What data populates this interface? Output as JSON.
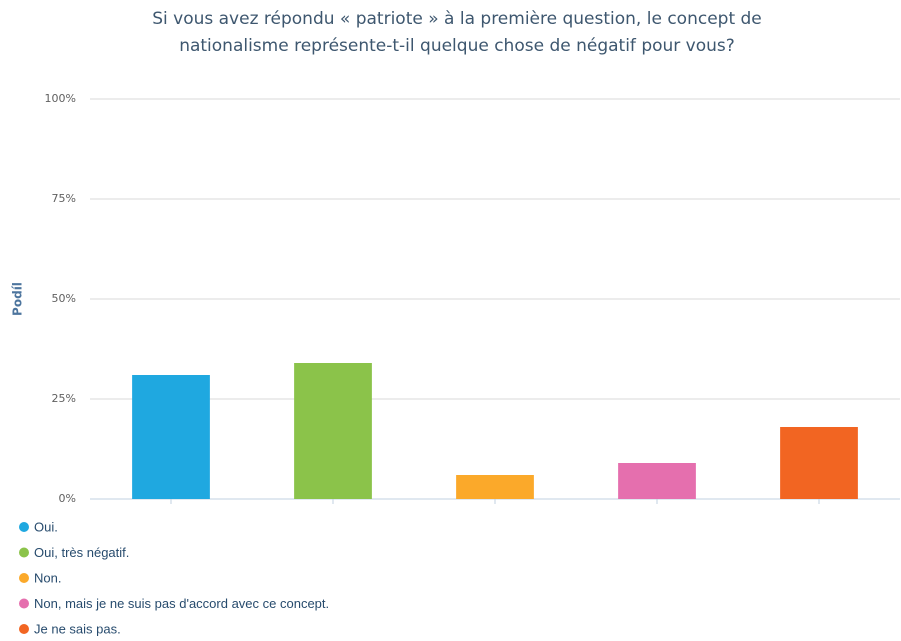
{
  "chart_data": {
    "type": "bar",
    "title": [
      "Si vous avez répondu « patriote » à la première question, le concept de",
      "nationalisme représente-t-il quelque chose de négatif pour vous?"
    ],
    "y_axis_label": "Podíl",
    "categories": [
      "Oui.",
      "Oui, très négatif.",
      "Non.",
      "Non, mais je ne suis pas d'accord avec ce concept.",
      "Je ne sais pas."
    ],
    "values": [
      31,
      34,
      6,
      9,
      18
    ],
    "colors": [
      "#1fa8e0",
      "#8bc34a",
      "#fba92a",
      "#e56fae",
      "#f26522"
    ],
    "ylim": [
      0,
      100
    ],
    "yticks": [
      {
        "value": 0,
        "label": "0%"
      },
      {
        "value": 25,
        "label": "25%"
      },
      {
        "value": 50,
        "label": "50%"
      },
      {
        "value": 75,
        "label": "75%"
      },
      {
        "value": 100,
        "label": "100%"
      }
    ],
    "grid": true
  }
}
